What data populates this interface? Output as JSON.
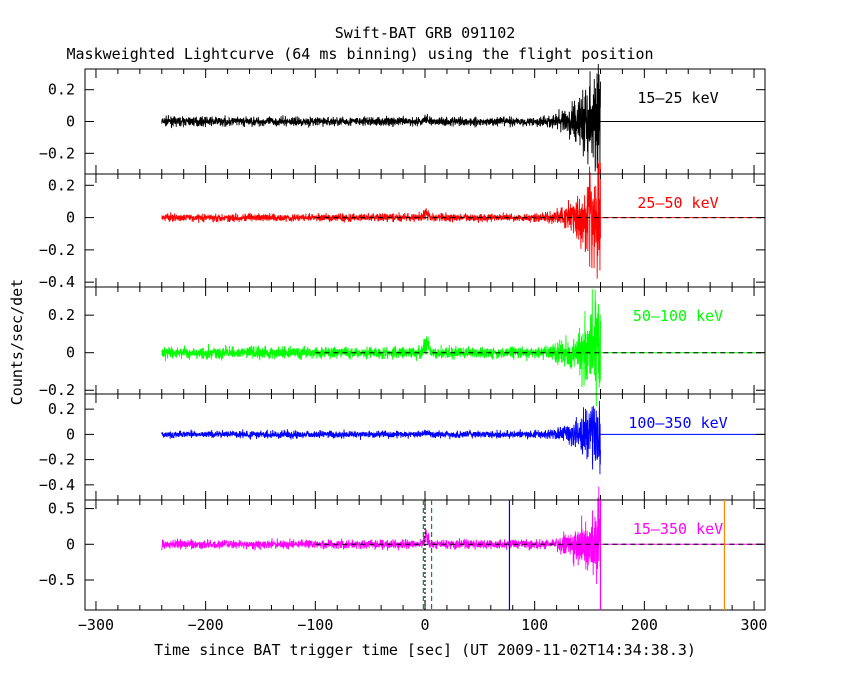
{
  "chart_data": {
    "type": "line",
    "title": "Swift-BAT GRB 091102",
    "subtitle": "Maskweighted Lightcurve (64 ms binning) using the flight position",
    "xlabel": "Time since BAT trigger time [sec] (UT 2009-11-02T14:34:38.3)",
    "ylabel": "Counts/sec/det",
    "xlim": [
      -310,
      310
    ],
    "xticks": [
      -300,
      -200,
      -100,
      0,
      100,
      200,
      300
    ],
    "grid": false,
    "panels": [
      {
        "band": "15–25 keV",
        "color": "#000000",
        "ylim": [
          -0.33,
          0.33
        ],
        "yticks": [
          -0.2,
          0,
          0.2
        ],
        "ytick_labels": [
          "−0.2",
          "0",
          "0.2"
        ],
        "noise": 0.02,
        "peak": 0.03,
        "end": 0.3,
        "zero_dashed": false
      },
      {
        "band": "25–50 keV",
        "color": "#ff0000",
        "ylim": [
          -0.43,
          0.27
        ],
        "yticks": [
          -0.4,
          -0.2,
          0,
          0.2
        ],
        "ytick_labels": [
          "−0.4",
          "−0.2",
          "0",
          "0.2"
        ],
        "noise": 0.017,
        "peak": 0.06,
        "end": 0.32,
        "zero_dashed": true
      },
      {
        "band": "50–100 keV",
        "color": "#00ff00",
        "ylim": [
          -0.22,
          0.35
        ],
        "yticks": [
          -0.2,
          0,
          0.2
        ],
        "ytick_labels": [
          "−0.2",
          "0",
          "0.2"
        ],
        "noise": 0.022,
        "peak": 0.12,
        "end": 0.24,
        "zero_dashed": true
      },
      {
        "band": "100–350 keV",
        "color": "#0000ff",
        "ylim": [
          -0.52,
          0.32
        ],
        "yticks": [
          -0.4,
          -0.2,
          0,
          0.2
        ],
        "ytick_labels": [
          "−0.4",
          "−0.2",
          "0",
          "0.2"
        ],
        "noise": 0.02,
        "peak": 0.03,
        "end": 0.26,
        "zero_dashed": false
      },
      {
        "band": "15–350 keV",
        "color": "#ff00ff",
        "ylim": [
          -0.92,
          0.62
        ],
        "yticks": [
          -0.5,
          0,
          0.5
        ],
        "ytick_labels": [
          "−0.5",
          "0",
          "0.5"
        ],
        "noise": 0.045,
        "peak": 0.25,
        "end": 0.55,
        "zero_dashed": true
      }
    ],
    "series_x_range": [
      -240,
      160
    ],
    "zero_line_x_range": [
      160,
      310
    ],
    "dashed_zero_x_range": [
      -100,
      310
    ],
    "markers": [
      {
        "x": -1.5,
        "color": "#009900",
        "style": "dashed"
      },
      {
        "x": 6,
        "color": "#009900",
        "style": "dashed"
      },
      {
        "x": 0,
        "color": "#000000",
        "style": "dotted"
      },
      {
        "x": 77,
        "color": "#0000ff",
        "style": "solid"
      },
      {
        "x": 160,
        "color": "#ff00ff",
        "style": "solid"
      },
      {
        "x": 273,
        "color": "#ff8800",
        "style": "solid"
      }
    ]
  }
}
